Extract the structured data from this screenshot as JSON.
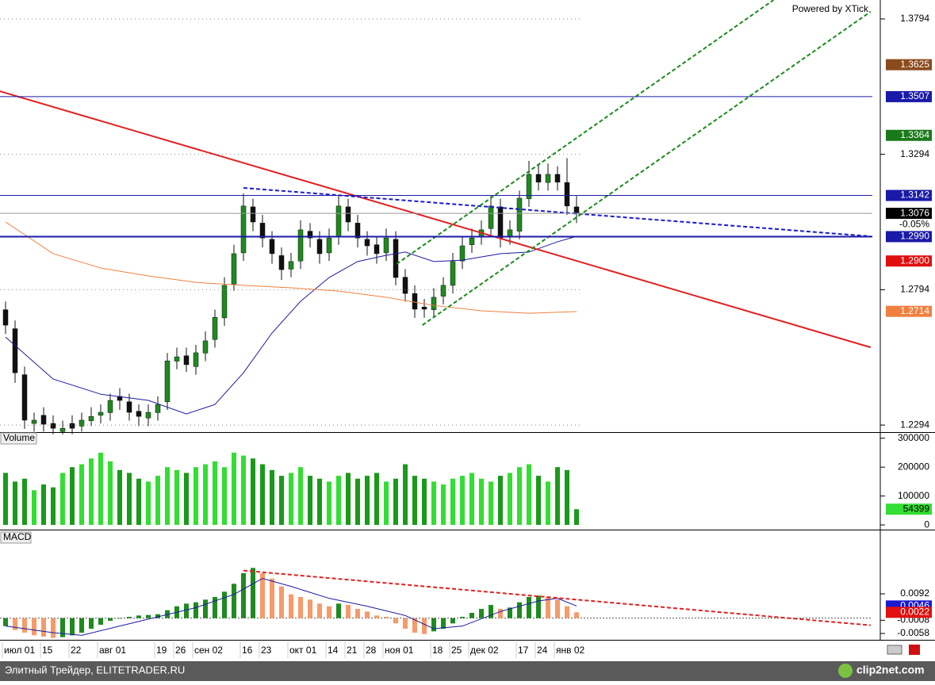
{
  "chart_data": [
    {
      "type": "candlestick",
      "watermark": "Powered by XTick",
      "up_color": "#1f8a1f",
      "down_color": "#111111",
      "grid": true,
      "ylim": [
        1.2268,
        1.3864
      ],
      "yticks": [
        1.2294,
        1.2794,
        1.3294,
        1.3794
      ],
      "open": [
        1.272,
        1.265,
        1.248,
        1.23,
        1.233,
        1.23,
        1.227,
        1.23,
        1.229,
        1.231,
        1.233,
        1.234,
        1.24,
        1.238,
        1.2345,
        1.232,
        1.234,
        1.238,
        1.253,
        1.255,
        1.251,
        1.256,
        1.261,
        1.269,
        1.2815,
        1.293,
        1.31,
        1.304,
        1.298,
        1.292,
        1.287,
        1.29,
        1.301,
        1.298,
        1.293,
        1.299,
        1.31,
        1.304,
        1.298,
        1.296,
        1.293,
        1.298,
        1.284,
        1.278,
        1.273,
        1.272,
        1.277,
        1.281,
        1.29,
        1.296,
        1.299,
        1.302,
        1.31,
        1.299,
        1.301,
        1.313,
        1.322,
        1.319,
        1.322,
        1.319,
        1.31
      ],
      "high": [
        1.275,
        1.268,
        1.251,
        1.234,
        1.236,
        1.233,
        1.231,
        1.233,
        1.234,
        1.236,
        1.237,
        1.241,
        1.243,
        1.241,
        1.237,
        1.237,
        1.24,
        1.256,
        1.258,
        1.258,
        1.259,
        1.264,
        1.272,
        1.284,
        1.296,
        1.315,
        1.313,
        1.307,
        1.301,
        1.295,
        1.293,
        1.305,
        1.304,
        1.301,
        1.302,
        1.314,
        1.313,
        1.307,
        1.301,
        1.299,
        1.302,
        1.301,
        1.287,
        1.281,
        1.276,
        1.28,
        1.284,
        1.293,
        1.299,
        1.302,
        1.305,
        1.314,
        1.313,
        1.305,
        1.316,
        1.327,
        1.326,
        1.326,
        1.325,
        1.328,
        1.314
      ],
      "low": [
        1.263,
        1.245,
        1.228,
        1.227,
        1.227,
        1.226,
        1.226,
        1.226,
        1.227,
        1.229,
        1.23,
        1.231,
        1.235,
        1.231,
        1.229,
        1.229,
        1.231,
        1.235,
        1.25,
        1.249,
        1.248,
        1.253,
        1.258,
        1.266,
        1.279,
        1.29,
        1.301,
        1.295,
        1.289,
        1.283,
        1.284,
        1.287,
        1.295,
        1.289,
        1.29,
        1.296,
        1.301,
        1.295,
        1.292,
        1.289,
        1.29,
        1.281,
        1.275,
        1.269,
        1.269,
        1.269,
        1.274,
        1.278,
        1.287,
        1.293,
        1.296,
        1.299,
        1.295,
        1.296,
        1.298,
        1.31,
        1.316,
        1.316,
        1.316,
        1.307,
        1.304
      ],
      "close": [
        1.2663,
        1.2487,
        1.2312,
        1.2312,
        1.2297,
        1.2282,
        1.2282,
        1.2282,
        1.2312,
        1.2326,
        1.2341,
        1.2385,
        1.2385,
        1.2341,
        1.2326,
        1.2341,
        1.237,
        1.2531,
        1.2546,
        1.2517,
        1.2561,
        1.2605,
        1.2692,
        1.281,
        1.2927,
        1.3103,
        1.3044,
        1.2985,
        1.2927,
        1.2868,
        1.2898,
        1.3015,
        1.2985,
        1.2927,
        1.2985,
        1.3103,
        1.3044,
        1.2985,
        1.2956,
        1.2927,
        1.2985,
        1.2839,
        1.278,
        1.2722,
        1.2722,
        1.2766,
        1.281,
        1.2898,
        1.2956,
        1.2985,
        1.3015,
        1.3103,
        1.2985,
        1.3015,
        1.3132,
        1.322,
        1.3191,
        1.322,
        1.3191,
        1.3103,
        1.3076
      ],
      "price_labels": [
        {
          "value": 1.3625,
          "color": "#8b4a1c"
        },
        {
          "value": 1.3507,
          "color": "#1a1aa8",
          "line": true
        },
        {
          "value": 1.3364,
          "color": "#1a7a1a"
        },
        {
          "value": 1.3142,
          "color": "#1a1aa8",
          "line": true
        },
        {
          "value": 1.3076,
          "color": "#000000",
          "line": true,
          "change": "-0.05%"
        },
        {
          "value": 1.299,
          "label": "1.2990",
          "color": "#1a1aa8",
          "line": true
        },
        {
          "value": 1.29,
          "label": "1.2900",
          "color": "#e01010"
        },
        {
          "value": 1.2714,
          "color": "#f08040"
        }
      ],
      "overlays": [
        {
          "color": "#1a1aa0",
          "x": [
            0,
            5,
            10,
            15,
            19,
            22,
            25,
            28,
            31,
            34,
            37,
            40,
            42,
            45,
            48,
            52,
            55,
            58,
            60
          ],
          "values": [
            1.2619,
            1.2464,
            1.2408,
            1.2385,
            1.2335,
            1.237,
            1.2487,
            1.2634,
            1.2751,
            1.2839,
            1.2898,
            1.2921,
            1.2933,
            1.2898,
            1.2903,
            1.2927,
            1.2933,
            1.2971,
            1.2991
          ]
        },
        {
          "color": "#f08040",
          "x": [
            0,
            5,
            10,
            15,
            20,
            25,
            30,
            35,
            40,
            45,
            50,
            55,
            60
          ],
          "values": [
            1.3044,
            1.2927,
            1.2874,
            1.2845,
            1.2821,
            1.281,
            1.2801,
            1.2789,
            1.2766,
            1.2736,
            1.2716,
            1.2707,
            1.2713
          ]
        }
      ],
      "trend_lines": [
        {
          "color": "#e02020",
          "dash": false,
          "x": [
            -0.6,
            90.9
          ],
          "values": [
            1.3527,
            1.2581
          ]
        },
        {
          "color": "#1a1ad0",
          "dash": true,
          "x": [
            25,
            90.9
          ],
          "values": [
            1.317,
            1.2991
          ]
        },
        {
          "color": "#1a8a1a",
          "dash": true,
          "x": [
            43.8,
            90.9
          ],
          "values": [
            1.2663,
            1.3821
          ]
        },
        {
          "color": "#1a8a1a",
          "dash": true,
          "x": [
            41.1,
            80.7
          ],
          "values": [
            1.2889,
            1.3864
          ]
        }
      ]
    },
    {
      "type": "bar",
      "title": "Volume",
      "up_color": "#33dd33",
      "down_color": "#1a9a1a",
      "ylim": [
        -8000,
        313000
      ],
      "yticks": [
        0,
        100000,
        200000,
        300000
      ],
      "values": [
        180000,
        150000,
        160000,
        120000,
        140000,
        130000,
        180000,
        200000,
        210000,
        230000,
        250000,
        220000,
        190000,
        180000,
        160000,
        150000,
        170000,
        200000,
        190000,
        180000,
        200000,
        210000,
        220000,
        200000,
        250000,
        240000,
        230000,
        210000,
        190000,
        170000,
        180000,
        200000,
        170000,
        160000,
        150000,
        170000,
        180000,
        160000,
        170000,
        180000,
        150000,
        160000,
        210000,
        170000,
        160000,
        150000,
        140000,
        160000,
        170000,
        180000,
        160000,
        150000,
        170000,
        180000,
        200000,
        210000,
        170000,
        150000,
        200000,
        190000,
        54399
      ]
    },
    {
      "type": "macd",
      "title": "MACD",
      "up_color": "#1f8a1f",
      "down_color": "#f79a6a",
      "ylim": [
        -0.0076,
        0.0326
      ],
      "yticks": [
        0.0092,
        -0.0008,
        -0.0058
      ],
      "values": [
        -0.003,
        -0.0045,
        -0.0055,
        -0.0065,
        -0.007,
        -0.0075,
        -0.0072,
        -0.0065,
        -0.0055,
        -0.004,
        -0.0025,
        -0.001,
        -0.0002,
        0.0005,
        0.001,
        0.0012,
        0.0015,
        0.003,
        0.0045,
        0.0055,
        0.006,
        0.007,
        0.008,
        0.01,
        0.013,
        0.017,
        0.019,
        0.017,
        0.015,
        0.012,
        0.009,
        0.008,
        0.007,
        0.0055,
        0.0045,
        0.0055,
        0.005,
        0.0035,
        0.0025,
        0.001,
        0.0005,
        -0.002,
        -0.004,
        -0.0055,
        -0.006,
        -0.005,
        -0.004,
        -0.002,
        0.0005,
        0.002,
        0.0035,
        0.005,
        0.0035,
        0.004,
        0.006,
        0.008,
        0.0085,
        0.008,
        0.007,
        0.0045,
        0.0022
      ],
      "categories": [
        "июл 01",
        null,
        null,
        null,
        "15",
        null,
        null,
        "22",
        null,
        null,
        "авг 01",
        null,
        null,
        null,
        null,
        null,
        "19",
        null,
        "26",
        null,
        "сен 02",
        null,
        null,
        null,
        null,
        "16",
        null,
        "23",
        null,
        null,
        "окт 01",
        null,
        null,
        null,
        "14",
        null,
        "21",
        null,
        "28",
        null,
        "ноя 01",
        null,
        null,
        null,
        null,
        "18",
        null,
        "25",
        null,
        "дек 02",
        null,
        null,
        null,
        null,
        "17",
        null,
        "24",
        null,
        "янв 02",
        null,
        null
      ],
      "price_labels": [
        {
          "value": 0.0046,
          "color": "#1a1ad0"
        },
        {
          "value": 0.0022,
          "color": "#e01010"
        }
      ],
      "overlays": [
        {
          "color": "#1a1aa0",
          "x": [
            0,
            5,
            8,
            12,
            16,
            20,
            24,
            27,
            30,
            34,
            38,
            42,
            45,
            48,
            52,
            56,
            58,
            60
          ],
          "values": [
            -0.003,
            -0.0055,
            -0.0065,
            -0.003,
            0.0005,
            0.004,
            0.009,
            0.015,
            0.012,
            0.0075,
            0.0045,
            0.001,
            -0.004,
            -0.003,
            0.0025,
            0.0065,
            0.0075,
            0.0046
          ]
        }
      ],
      "trend_lines": [
        {
          "color": "#e02020",
          "dash": true,
          "x": [
            25,
            90.9
          ],
          "values": [
            0.018,
            -0.0027
          ]
        }
      ]
    }
  ],
  "footer": {
    "text": "Элитный Трейдер, ELITETRADER.RU",
    "logo": "clip2net.com"
  }
}
